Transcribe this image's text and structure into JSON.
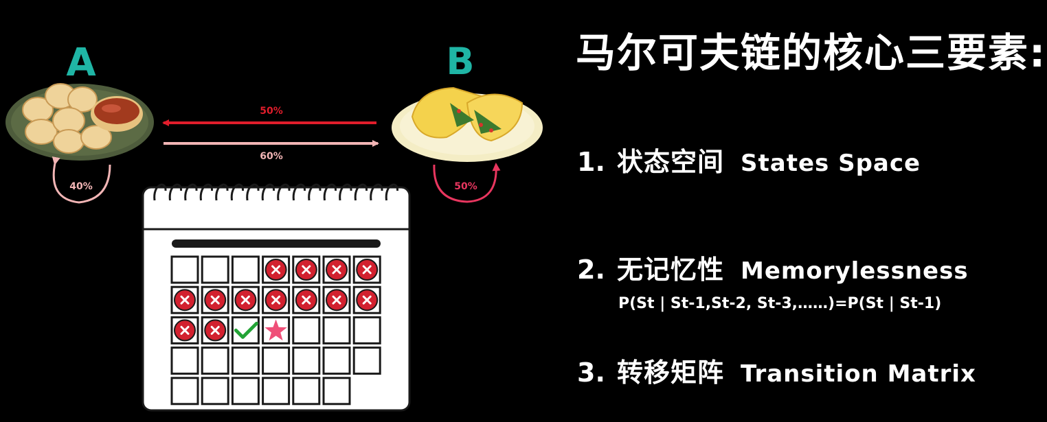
{
  "diagram": {
    "state_a": {
      "label": "A",
      "self_loop_probability": "40%"
    },
    "state_b": {
      "label": "B",
      "self_loop_probability": "50%"
    },
    "transition_b_to_a": "50%",
    "transition_a_to_b": "60%",
    "calendar": {
      "weeks": [
        [
          "",
          "",
          "",
          "x",
          "x",
          "x",
          "x"
        ],
        [
          "x",
          "x",
          "x",
          "x",
          "x",
          "x",
          "x"
        ],
        [
          "x",
          "x",
          "check",
          "star",
          "",
          "",
          ""
        ],
        [
          "",
          "",
          "",
          "",
          "",
          "",
          ""
        ],
        [
          "",
          "",
          "",
          "",
          "",
          "",
          null
        ]
      ]
    }
  },
  "content": {
    "title": "马尔可夫链的核心三要素:",
    "items": [
      {
        "num": "1.",
        "zh": "状态空间",
        "en": "States Space"
      },
      {
        "num": "2.",
        "zh": "无记忆性",
        "en": "Memorylessness"
      },
      {
        "num": "3.",
        "zh": "转移矩阵",
        "en": "Transition Matrix"
      }
    ],
    "formula": "P(St | St-1,St-2, St-3,……)=P(St | St-1)"
  },
  "colors": {
    "background": "#000000",
    "state_label": "#1fb5a5",
    "arrow_red": "#e01d2b",
    "arrow_pink": "#f2b5b5",
    "loop_b": "#e8365f",
    "x_mark": "#d2212f",
    "check": "#23a336",
    "star": "#ef4f78"
  }
}
